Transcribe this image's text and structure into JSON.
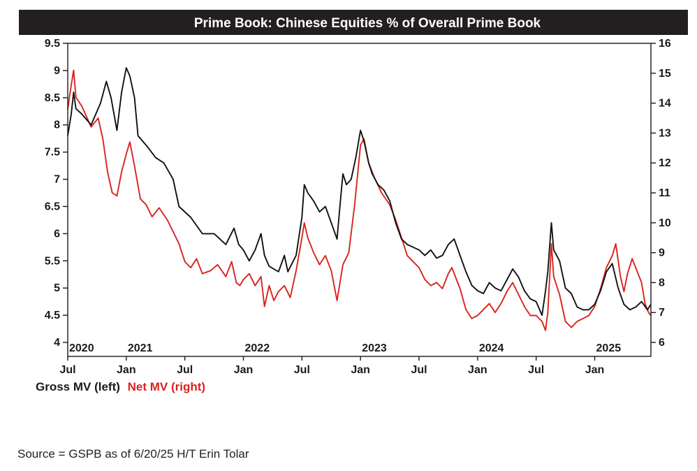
{
  "chart_data": {
    "type": "line",
    "title": "Prime Book: Chinese Equities % of Overall Prime Book",
    "y_left": {
      "range": [
        4,
        9.5
      ],
      "ticks": [
        "4",
        "4.5",
        "5",
        "5.5",
        "6",
        "6.5",
        "7",
        "7.5",
        "8",
        "8.5",
        "9",
        "9.5"
      ]
    },
    "y_right": {
      "range": [
        6,
        16
      ],
      "ticks": [
        "6",
        "7",
        "8",
        "9",
        "10",
        "11",
        "12",
        "13",
        "14",
        "15",
        "16"
      ]
    },
    "x_range": [
      2020.5,
      2025.48
    ],
    "x_month_ticks": [
      {
        "t": 2020.5,
        "label": "Jul"
      },
      {
        "t": 2021.0,
        "label": "Jan"
      },
      {
        "t": 2021.5,
        "label": "Jul"
      },
      {
        "t": 2022.0,
        "label": "Jan"
      },
      {
        "t": 2022.5,
        "label": "Jul"
      },
      {
        "t": 2023.0,
        "label": "Jan"
      },
      {
        "t": 2023.5,
        "label": "Jul"
      },
      {
        "t": 2024.0,
        "label": "Jan"
      },
      {
        "t": 2024.5,
        "label": "Jul"
      },
      {
        "t": 2025.0,
        "label": "Jan"
      }
    ],
    "x_year_labels": [
      {
        "t": 2020.5,
        "label": "2020"
      },
      {
        "t": 2021.0,
        "label": "2021"
      },
      {
        "t": 2022.0,
        "label": "2022"
      },
      {
        "t": 2023.0,
        "label": "2023"
      },
      {
        "t": 2024.0,
        "label": "2024"
      },
      {
        "t": 2025.0,
        "label": "2025"
      }
    ],
    "series": [
      {
        "name": "Gross MV (left)",
        "axis": "left",
        "color": "#111111",
        "points": [
          [
            2020.5,
            7.8
          ],
          [
            2020.53,
            8.2
          ],
          [
            2020.55,
            8.6
          ],
          [
            2020.57,
            8.3
          ],
          [
            2020.62,
            8.2
          ],
          [
            2020.7,
            8.0
          ],
          [
            2020.78,
            8.4
          ],
          [
            2020.83,
            8.8
          ],
          [
            2020.87,
            8.5
          ],
          [
            2020.92,
            7.9
          ],
          [
            2020.96,
            8.6
          ],
          [
            2021.0,
            9.05
          ],
          [
            2021.03,
            8.9
          ],
          [
            2021.07,
            8.5
          ],
          [
            2021.1,
            7.8
          ],
          [
            2021.18,
            7.6
          ],
          [
            2021.25,
            7.4
          ],
          [
            2021.32,
            7.3
          ],
          [
            2021.4,
            7.0
          ],
          [
            2021.45,
            6.5
          ],
          [
            2021.55,
            6.3
          ],
          [
            2021.65,
            6.0
          ],
          [
            2021.75,
            6.0
          ],
          [
            2021.85,
            5.8
          ],
          [
            2021.92,
            6.1
          ],
          [
            2021.96,
            5.8
          ],
          [
            2022.0,
            5.7
          ],
          [
            2022.05,
            5.5
          ],
          [
            2022.1,
            5.7
          ],
          [
            2022.15,
            6.0
          ],
          [
            2022.18,
            5.6
          ],
          [
            2022.22,
            5.4
          ],
          [
            2022.3,
            5.3
          ],
          [
            2022.35,
            5.6
          ],
          [
            2022.38,
            5.3
          ],
          [
            2022.45,
            5.6
          ],
          [
            2022.5,
            6.3
          ],
          [
            2022.52,
            6.9
          ],
          [
            2022.55,
            6.75
          ],
          [
            2022.6,
            6.6
          ],
          [
            2022.65,
            6.4
          ],
          [
            2022.7,
            6.5
          ],
          [
            2022.75,
            6.2
          ],
          [
            2022.8,
            5.9
          ],
          [
            2022.82,
            6.4
          ],
          [
            2022.85,
            7.1
          ],
          [
            2022.88,
            6.9
          ],
          [
            2022.92,
            7.0
          ],
          [
            2022.96,
            7.4
          ],
          [
            2023.0,
            7.9
          ],
          [
            2023.03,
            7.7
          ],
          [
            2023.07,
            7.3
          ],
          [
            2023.1,
            7.1
          ],
          [
            2023.15,
            6.9
          ],
          [
            2023.2,
            6.8
          ],
          [
            2023.25,
            6.6
          ],
          [
            2023.3,
            6.2
          ],
          [
            2023.35,
            5.9
          ],
          [
            2023.4,
            5.8
          ],
          [
            2023.45,
            5.75
          ],
          [
            2023.5,
            5.7
          ],
          [
            2023.55,
            5.6
          ],
          [
            2023.6,
            5.7
          ],
          [
            2023.65,
            5.55
          ],
          [
            2023.7,
            5.6
          ],
          [
            2023.75,
            5.8
          ],
          [
            2023.8,
            5.9
          ],
          [
            2023.85,
            5.6
          ],
          [
            2023.9,
            5.3
          ],
          [
            2023.95,
            5.05
          ],
          [
            2024.0,
            4.95
          ],
          [
            2024.05,
            4.9
          ],
          [
            2024.1,
            5.1
          ],
          [
            2024.15,
            5.0
          ],
          [
            2024.2,
            4.95
          ],
          [
            2024.25,
            5.15
          ],
          [
            2024.3,
            5.35
          ],
          [
            2024.35,
            5.2
          ],
          [
            2024.4,
            4.95
          ],
          [
            2024.45,
            4.8
          ],
          [
            2024.5,
            4.75
          ],
          [
            2024.55,
            4.5
          ],
          [
            2024.58,
            4.95
          ],
          [
            2024.6,
            5.3
          ],
          [
            2024.63,
            6.2
          ],
          [
            2024.65,
            5.7
          ],
          [
            2024.7,
            5.5
          ],
          [
            2024.75,
            5.0
          ],
          [
            2024.8,
            4.9
          ],
          [
            2024.85,
            4.65
          ],
          [
            2024.9,
            4.6
          ],
          [
            2024.95,
            4.6
          ],
          [
            2025.0,
            4.7
          ],
          [
            2025.05,
            4.95
          ],
          [
            2025.1,
            5.3
          ],
          [
            2025.15,
            5.45
          ],
          [
            2025.2,
            5.0
          ],
          [
            2025.25,
            4.7
          ],
          [
            2025.3,
            4.6
          ],
          [
            2025.35,
            4.65
          ],
          [
            2025.4,
            4.75
          ],
          [
            2025.45,
            4.6
          ],
          [
            2025.48,
            4.7
          ]
        ]
      },
      {
        "name": "Net MV (right)",
        "axis": "right",
        "color": "#d8231f",
        "points": [
          [
            2020.5,
            13.8
          ],
          [
            2020.53,
            14.6
          ],
          [
            2020.55,
            15.1
          ],
          [
            2020.57,
            14.2
          ],
          [
            2020.62,
            13.9
          ],
          [
            2020.7,
            13.2
          ],
          [
            2020.76,
            13.5
          ],
          [
            2020.8,
            12.8
          ],
          [
            2020.84,
            11.7
          ],
          [
            2020.88,
            11.0
          ],
          [
            2020.92,
            10.9
          ],
          [
            2020.96,
            11.7
          ],
          [
            2021.0,
            12.3
          ],
          [
            2021.03,
            12.7
          ],
          [
            2021.07,
            11.9
          ],
          [
            2021.12,
            10.8
          ],
          [
            2021.17,
            10.6
          ],
          [
            2021.22,
            10.2
          ],
          [
            2021.28,
            10.5
          ],
          [
            2021.35,
            10.1
          ],
          [
            2021.4,
            9.7
          ],
          [
            2021.45,
            9.3
          ],
          [
            2021.5,
            8.7
          ],
          [
            2021.55,
            8.5
          ],
          [
            2021.6,
            8.8
          ],
          [
            2021.65,
            8.3
          ],
          [
            2021.72,
            8.4
          ],
          [
            2021.78,
            8.6
          ],
          [
            2021.85,
            8.2
          ],
          [
            2021.9,
            8.7
          ],
          [
            2021.94,
            8.0
          ],
          [
            2021.97,
            7.9
          ],
          [
            2022.0,
            8.1
          ],
          [
            2022.05,
            8.3
          ],
          [
            2022.1,
            7.9
          ],
          [
            2022.15,
            8.2
          ],
          [
            2022.18,
            7.2
          ],
          [
            2022.22,
            7.9
          ],
          [
            2022.26,
            7.4
          ],
          [
            2022.3,
            7.7
          ],
          [
            2022.35,
            7.9
          ],
          [
            2022.4,
            7.5
          ],
          [
            2022.45,
            8.4
          ],
          [
            2022.5,
            9.5
          ],
          [
            2022.52,
            10.0
          ],
          [
            2022.55,
            9.5
          ],
          [
            2022.6,
            9.0
          ],
          [
            2022.65,
            8.6
          ],
          [
            2022.7,
            8.9
          ],
          [
            2022.75,
            8.4
          ],
          [
            2022.8,
            7.4
          ],
          [
            2022.85,
            8.6
          ],
          [
            2022.9,
            9.0
          ],
          [
            2022.95,
            10.6
          ],
          [
            2023.0,
            12.6
          ],
          [
            2023.03,
            12.8
          ],
          [
            2023.07,
            12.0
          ],
          [
            2023.12,
            11.5
          ],
          [
            2023.18,
            11.0
          ],
          [
            2023.25,
            10.6
          ],
          [
            2023.3,
            10.1
          ],
          [
            2023.35,
            9.5
          ],
          [
            2023.4,
            8.9
          ],
          [
            2023.45,
            8.7
          ],
          [
            2023.5,
            8.5
          ],
          [
            2023.55,
            8.1
          ],
          [
            2023.6,
            7.9
          ],
          [
            2023.65,
            8.0
          ],
          [
            2023.7,
            7.8
          ],
          [
            2023.75,
            8.3
          ],
          [
            2023.78,
            8.5
          ],
          [
            2023.82,
            8.1
          ],
          [
            2023.85,
            7.8
          ],
          [
            2023.9,
            7.1
          ],
          [
            2023.95,
            6.8
          ],
          [
            2024.0,
            6.9
          ],
          [
            2024.05,
            7.1
          ],
          [
            2024.1,
            7.3
          ],
          [
            2024.15,
            7.0
          ],
          [
            2024.2,
            7.3
          ],
          [
            2024.25,
            7.7
          ],
          [
            2024.3,
            8.0
          ],
          [
            2024.35,
            7.6
          ],
          [
            2024.4,
            7.2
          ],
          [
            2024.45,
            6.9
          ],
          [
            2024.5,
            6.9
          ],
          [
            2024.55,
            6.7
          ],
          [
            2024.58,
            6.4
          ],
          [
            2024.6,
            7.0
          ],
          [
            2024.63,
            9.3
          ],
          [
            2024.65,
            8.2
          ],
          [
            2024.7,
            7.6
          ],
          [
            2024.75,
            6.7
          ],
          [
            2024.8,
            6.5
          ],
          [
            2024.85,
            6.7
          ],
          [
            2024.9,
            6.8
          ],
          [
            2024.95,
            6.9
          ],
          [
            2025.0,
            7.2
          ],
          [
            2025.05,
            7.8
          ],
          [
            2025.1,
            8.5
          ],
          [
            2025.15,
            8.9
          ],
          [
            2025.18,
            9.3
          ],
          [
            2025.22,
            8.2
          ],
          [
            2025.25,
            7.7
          ],
          [
            2025.28,
            8.3
          ],
          [
            2025.32,
            8.8
          ],
          [
            2025.36,
            8.4
          ],
          [
            2025.4,
            8.0
          ],
          [
            2025.43,
            7.3
          ],
          [
            2025.46,
            7.0
          ],
          [
            2025.48,
            6.9
          ]
        ]
      }
    ],
    "legend": {
      "gross": "Gross MV (left)",
      "net": "Net MV (right)"
    }
  },
  "source": "Source = GSPB as of 6/20/25 H/T Erin Tolar"
}
